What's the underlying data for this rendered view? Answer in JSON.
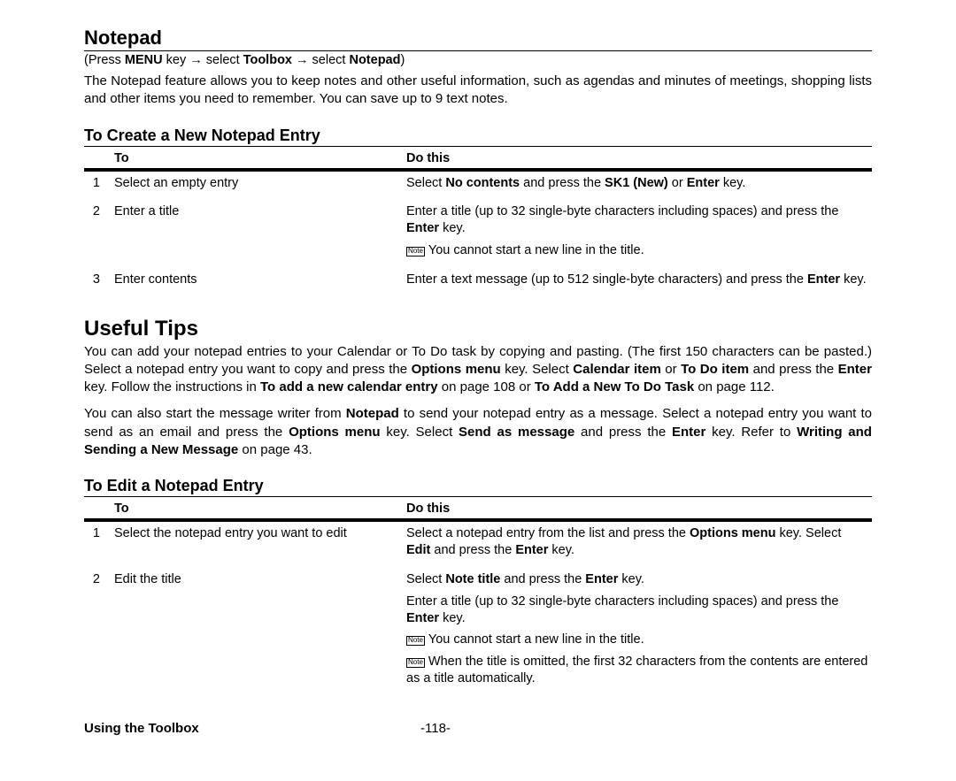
{
  "section1": {
    "title": "Notepad",
    "breadcrumb_parts": [
      "(Press ",
      "MENU",
      " key ",
      "→",
      " select ",
      "Toolbox",
      "  ",
      "→",
      " select ",
      "Notepad",
      ")"
    ],
    "para": "The Notepad feature allows you to keep notes and other useful information, such as agendas and minutes of meetings, shopping lists and other items you need to remember. You can save up to 9 text notes.",
    "sub": "To Create a New Notepad Entry",
    "th_to": "To",
    "th_do": "Do this",
    "rows": [
      {
        "n": "1",
        "to": "Select an empty entry",
        "do": [
          {
            "html": "Select <b>No contents</b> and press the <b>SK1 (New)</b> or <b>Enter</b> key."
          }
        ]
      },
      {
        "n": "2",
        "to": "Enter a title",
        "do": [
          {
            "html": "Enter a title (up to 32 single-byte characters including spaces) and press the <b>Enter</b> key."
          },
          {
            "note": true,
            "html": "You cannot start a new line in the title."
          }
        ]
      },
      {
        "n": "3",
        "to": "Enter contents",
        "do": [
          {
            "html": "Enter a text message (up to 512 single-byte characters) and press the <b>Enter</b> key."
          }
        ]
      }
    ]
  },
  "section2": {
    "title": "Useful Tips",
    "para1": "You can add your notepad entries to your Calendar or To Do task by copying and pasting. (The first 150 characters can be pasted.) Select a notepad entry you want to copy and press the <b>Options menu</b> key. Select <b>Calendar item</b> or <b>To Do item</b> and press the <b>Enter</b> key. Follow the instructions in <b>To add a new calendar entry</b> on page 108 or <b>To Add a New To Do Task</b> on page 112.",
    "para2": "You can also start the message writer from <b>Notepad</b> to send your notepad entry as a message. Select a notepad entry you want to send as an email and press the <b>Options menu</b> key. Select <b>Send as message</b> and press the <b>Enter</b> key. Refer to <b>Writing and Sending a New Message</b> on page 43.",
    "sub": "To Edit a Notepad Entry",
    "th_to": "To",
    "th_do": "Do this",
    "rows": [
      {
        "n": "1",
        "to": "Select the notepad entry you want to edit",
        "do": [
          {
            "html": "Select a notepad entry from the list and press the <b>Options menu</b> key. Select <b>Edit</b> and press the <b>Enter</b> key."
          }
        ]
      },
      {
        "n": "2",
        "to": "Edit the title",
        "do": [
          {
            "html": "Select <b>Note title</b> and press the <b>Enter</b> key."
          },
          {
            "html": "Enter a title (up to 32 single-byte characters including spaces) and press the <b>Enter</b> key."
          },
          {
            "note": true,
            "html": "You cannot start a new line in the title."
          },
          {
            "note": true,
            "html": "When the title is omitted, the first 32 characters from the contents are entered as a title automatically."
          }
        ]
      }
    ]
  },
  "footer": {
    "left": "Using the Toolbox",
    "center": "-118-"
  }
}
